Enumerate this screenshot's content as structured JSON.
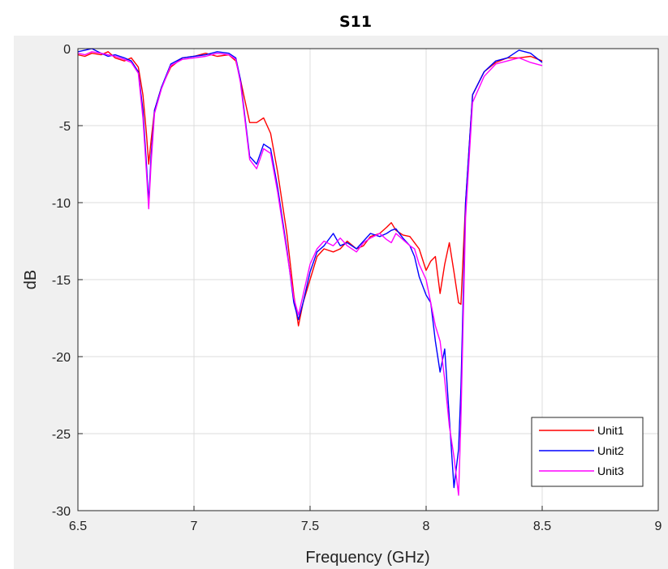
{
  "chart_data": {
    "type": "line",
    "title": "S11",
    "xlabel": "Frequency (GHz)",
    "ylabel": "dB",
    "xlim": [
      6.5,
      9
    ],
    "ylim": [
      -30,
      0
    ],
    "xticks": [
      6.5,
      7,
      7.5,
      8,
      8.5,
      9
    ],
    "xtick_labels": [
      "6.5",
      "7",
      "7.5",
      "8",
      "8.5",
      "9"
    ],
    "yticks": [
      0,
      -5,
      -10,
      -15,
      -20,
      -25,
      -30
    ],
    "ytick_labels": [
      "0",
      "-5",
      "-10",
      "-15",
      "-20",
      "-25",
      "-30"
    ],
    "grid": true,
    "legend_position": "bottom-right",
    "series": [
      {
        "name": "Unit1",
        "color": "#ff0000",
        "x": [
          6.5,
          6.53,
          6.56,
          6.6,
          6.63,
          6.66,
          6.7,
          6.73,
          6.76,
          6.78,
          6.795,
          6.805,
          6.815,
          6.83,
          6.86,
          6.9,
          6.95,
          7.0,
          7.05,
          7.1,
          7.15,
          7.18,
          7.2,
          7.24,
          7.27,
          7.3,
          7.33,
          7.36,
          7.4,
          7.43,
          7.45,
          7.47,
          7.5,
          7.53,
          7.56,
          7.6,
          7.63,
          7.66,
          7.7,
          7.73,
          7.76,
          7.8,
          7.83,
          7.85,
          7.87,
          7.9,
          7.93,
          7.95,
          7.97,
          8.0,
          8.02,
          8.04,
          8.06,
          8.08,
          8.1,
          8.12,
          8.14,
          8.15,
          8.17,
          8.2,
          8.25,
          8.3,
          8.35,
          8.4,
          8.45,
          8.5
        ],
        "y": [
          -0.4,
          -0.5,
          -0.3,
          -0.4,
          -0.2,
          -0.6,
          -0.8,
          -0.6,
          -1.2,
          -3.0,
          -5.5,
          -7.5,
          -6.0,
          -4.0,
          -2.5,
          -1.2,
          -0.6,
          -0.5,
          -0.3,
          -0.5,
          -0.4,
          -0.8,
          -2.0,
          -4.8,
          -4.8,
          -4.5,
          -5.5,
          -8.0,
          -12.0,
          -16.0,
          -18.0,
          -16.5,
          -15.0,
          -13.5,
          -13.0,
          -13.2,
          -13.0,
          -12.5,
          -13.0,
          -12.8,
          -12.2,
          -12.0,
          -11.6,
          -11.3,
          -11.8,
          -12.1,
          -12.2,
          -12.6,
          -13.0,
          -14.4,
          -13.8,
          -13.5,
          -15.9,
          -14.0,
          -12.6,
          -14.5,
          -16.5,
          -16.6,
          -10.0,
          -3.0,
          -1.5,
          -0.9,
          -0.6,
          -0.6,
          -0.5,
          -0.8
        ]
      },
      {
        "name": "Unit2",
        "color": "#0000ff",
        "x": [
          6.5,
          6.53,
          6.56,
          6.6,
          6.63,
          6.66,
          6.7,
          6.73,
          6.76,
          6.78,
          6.795,
          6.805,
          6.815,
          6.83,
          6.86,
          6.9,
          6.95,
          7.0,
          7.05,
          7.1,
          7.15,
          7.18,
          7.2,
          7.24,
          7.27,
          7.3,
          7.33,
          7.36,
          7.4,
          7.43,
          7.45,
          7.47,
          7.5,
          7.53,
          7.56,
          7.6,
          7.63,
          7.66,
          7.7,
          7.73,
          7.76,
          7.8,
          7.83,
          7.85,
          7.87,
          7.9,
          7.93,
          7.95,
          7.97,
          8.0,
          8.02,
          8.04,
          8.06,
          8.08,
          8.1,
          8.12,
          8.14,
          8.15,
          8.17,
          8.2,
          8.25,
          8.3,
          8.35,
          8.4,
          8.45,
          8.5
        ],
        "y": [
          -0.2,
          -0.1,
          0.0,
          -0.3,
          -0.5,
          -0.4,
          -0.6,
          -0.8,
          -1.5,
          -4.0,
          -7.5,
          -10.0,
          -7.0,
          -4.0,
          -2.5,
          -1.0,
          -0.6,
          -0.5,
          -0.4,
          -0.2,
          -0.3,
          -0.6,
          -2.0,
          -7.0,
          -7.5,
          -6.2,
          -6.5,
          -9.0,
          -13.0,
          -16.5,
          -17.6,
          -16.5,
          -14.5,
          -13.2,
          -12.8,
          -12.0,
          -12.8,
          -12.6,
          -13.0,
          -12.5,
          -12.0,
          -12.2,
          -12.0,
          -11.8,
          -11.7,
          -12.3,
          -12.8,
          -13.5,
          -14.8,
          -16.0,
          -16.5,
          -19.0,
          -21.0,
          -19.5,
          -24.0,
          -28.5,
          -26.0,
          -22.0,
          -10.0,
          -3.0,
          -1.5,
          -0.8,
          -0.6,
          -0.1,
          -0.3,
          -0.9
        ]
      },
      {
        "name": "Unit3",
        "color": "#ff00ff",
        "x": [
          6.5,
          6.53,
          6.56,
          6.6,
          6.63,
          6.66,
          6.7,
          6.73,
          6.76,
          6.78,
          6.795,
          6.805,
          6.815,
          6.83,
          6.86,
          6.9,
          6.95,
          7.0,
          7.05,
          7.1,
          7.15,
          7.18,
          7.2,
          7.24,
          7.27,
          7.3,
          7.33,
          7.36,
          7.4,
          7.43,
          7.45,
          7.47,
          7.5,
          7.53,
          7.56,
          7.6,
          7.63,
          7.66,
          7.7,
          7.73,
          7.76,
          7.8,
          7.83,
          7.85,
          7.87,
          7.9,
          7.93,
          7.95,
          7.97,
          8.0,
          8.02,
          8.04,
          8.06,
          8.08,
          8.1,
          8.12,
          8.14,
          8.15,
          8.17,
          8.2,
          8.25,
          8.3,
          8.35,
          8.4,
          8.45,
          8.5
        ],
        "y": [
          -0.3,
          -0.4,
          -0.2,
          -0.3,
          -0.4,
          -0.5,
          -0.7,
          -0.9,
          -1.6,
          -4.5,
          -8.0,
          -10.4,
          -7.5,
          -4.2,
          -2.6,
          -1.1,
          -0.7,
          -0.6,
          -0.5,
          -0.3,
          -0.4,
          -0.7,
          -2.2,
          -7.2,
          -7.8,
          -6.5,
          -6.8,
          -9.3,
          -13.2,
          -16.2,
          -17.3,
          -16.0,
          -14.0,
          -13.0,
          -12.5,
          -12.8,
          -12.3,
          -12.8,
          -13.2,
          -12.6,
          -12.3,
          -12.0,
          -12.4,
          -12.6,
          -12.0,
          -12.4,
          -12.8,
          -13.0,
          -14.0,
          -15.0,
          -16.5,
          -18.0,
          -19.0,
          -21.5,
          -24.5,
          -26.5,
          -29.0,
          -24.0,
          -11.0,
          -3.5,
          -1.8,
          -1.0,
          -0.8,
          -0.6,
          -0.9,
          -1.1
        ]
      }
    ]
  }
}
